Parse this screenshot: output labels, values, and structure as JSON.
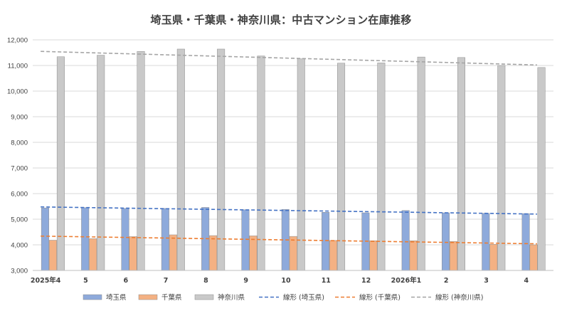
{
  "chart_data": {
    "type": "bar",
    "title": "埼玉県・千葉県・神奈川県：中古マンション在庫推移",
    "categories": [
      "2025年4",
      "5",
      "6",
      "7",
      "8",
      "9",
      "10",
      "11",
      "12",
      "2026年1",
      "2",
      "3",
      "4"
    ],
    "series": [
      {
        "name": "埼玉県",
        "color": "#8eaadb",
        "values": [
          5440,
          5450,
          5420,
          5420,
          5460,
          5370,
          5380,
          5270,
          5250,
          5340,
          5250,
          5230,
          5220
        ]
      },
      {
        "name": "千葉県",
        "color": "#f4b183",
        "values": [
          4180,
          4240,
          4320,
          4390,
          4360,
          4350,
          4330,
          4170,
          4160,
          4160,
          4130,
          4020,
          4000
        ]
      },
      {
        "name": "神奈川県",
        "color": "#c9c9c9",
        "values": [
          11340,
          11400,
          11550,
          11640,
          11640,
          11370,
          11260,
          11090,
          11100,
          11330,
          11310,
          11000,
          10920
        ]
      }
    ],
    "trendlines": [
      {
        "name": "線形 (埼玉県)",
        "color": "#4472c4",
        "start": 5480,
        "end": 5200
      },
      {
        "name": "線形 (千葉県)",
        "color": "#ed7d31",
        "start": 4340,
        "end": 4040
      },
      {
        "name": "線形 (神奈川県)",
        "color": "#a5a5a5",
        "start": 11550,
        "end": 11020
      }
    ],
    "yticks": [
      "3,000",
      "4,000",
      "5,000",
      "6,000",
      "7,000",
      "8,000",
      "9,000",
      "10,000",
      "11,000",
      "12,000"
    ],
    "ylim": [
      3000,
      12000
    ],
    "grid": true,
    "legend_position": "bottom"
  }
}
